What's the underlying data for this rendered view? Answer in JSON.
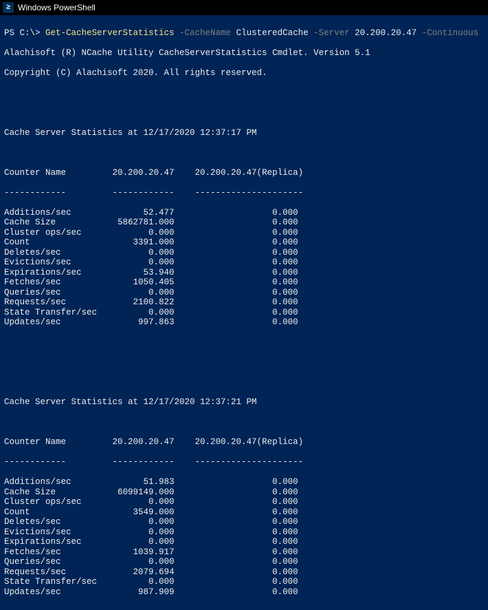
{
  "window": {
    "title": "Windows PowerShell",
    "icon_glyph": "≥"
  },
  "colors": {
    "background": "#012456",
    "text": "#eeeeee",
    "cmdlet": "#f0e68c",
    "param": "#808080",
    "titlebar_bg": "#000000"
  },
  "prompt": {
    "prefix": "PS C:\\> ",
    "cmdlet": "Get-CacheServerStatistics",
    "param1_flag": " -CacheName ",
    "param1_val": "ClusteredCache",
    "param2_flag": " -Server ",
    "param2_val": "20.200.20.47",
    "param3_flag": " -Continuous"
  },
  "banner": {
    "line1": "Alachisoft (R) NCache Utility CacheServerStatistics Cmdlet. Version 5.1",
    "line2": "Copyright (C) Alachisoft 2020. All rights reserved."
  },
  "columns": {
    "h1": "Counter Name",
    "h2": "20.200.20.47",
    "h3": "20.200.20.47(Replica)",
    "d1": "------------",
    "d2": "------------",
    "d3": "---------------------"
  },
  "snap1": {
    "title": "Cache Server Statistics at 12/17/2020 12:37:17 PM",
    "rows": [
      {
        "name": "Additions/sec",
        "c1": "52.477",
        "c2": "0.000"
      },
      {
        "name": "Cache Size",
        "c1": "5862781.000",
        "c2": "0.000"
      },
      {
        "name": "Cluster ops/sec",
        "c1": "0.000",
        "c2": "0.000"
      },
      {
        "name": "Count",
        "c1": "3391.000",
        "c2": "0.000"
      },
      {
        "name": "Deletes/sec",
        "c1": "0.000",
        "c2": "0.000"
      },
      {
        "name": "Evictions/sec",
        "c1": "0.000",
        "c2": "0.000"
      },
      {
        "name": "Expirations/sec",
        "c1": "53.940",
        "c2": "0.000"
      },
      {
        "name": "Fetches/sec",
        "c1": "1050.405",
        "c2": "0.000"
      },
      {
        "name": "Queries/sec",
        "c1": "0.000",
        "c2": "0.000"
      },
      {
        "name": "Requests/sec",
        "c1": "2100.822",
        "c2": "0.000"
      },
      {
        "name": "State Transfer/sec",
        "c1": "0.000",
        "c2": "0.000"
      },
      {
        "name": "Updates/sec",
        "c1": "997.863",
        "c2": "0.000"
      }
    ]
  },
  "snap2": {
    "title": "Cache Server Statistics at 12/17/2020 12:37:21 PM",
    "rows": [
      {
        "name": "Additions/sec",
        "c1": "51.983",
        "c2": "0.000"
      },
      {
        "name": "Cache Size",
        "c1": "6099149.000",
        "c2": "0.000"
      },
      {
        "name": "Cluster ops/sec",
        "c1": "0.000",
        "c2": "0.000"
      },
      {
        "name": "Count",
        "c1": "3549.000",
        "c2": "0.000"
      },
      {
        "name": "Deletes/sec",
        "c1": "0.000",
        "c2": "0.000"
      },
      {
        "name": "Evictions/sec",
        "c1": "0.000",
        "c2": "0.000"
      },
      {
        "name": "Expirations/sec",
        "c1": "0.000",
        "c2": "0.000"
      },
      {
        "name": "Fetches/sec",
        "c1": "1039.917",
        "c2": "0.000"
      },
      {
        "name": "Queries/sec",
        "c1": "0.000",
        "c2": "0.000"
      },
      {
        "name": "Requests/sec",
        "c1": "2079.694",
        "c2": "0.000"
      },
      {
        "name": "State Transfer/sec",
        "c1": "0.000",
        "c2": "0.000"
      },
      {
        "name": "Updates/sec",
        "c1": "987.909",
        "c2": "0.000"
      }
    ]
  },
  "layout": {
    "col1_width": 18,
    "col2_width": 15,
    "col3_width": 24
  }
}
